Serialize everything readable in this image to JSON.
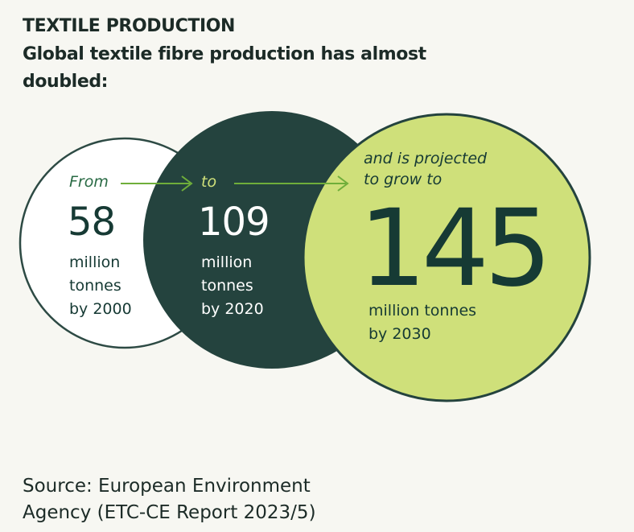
{
  "header": {
    "title": "TEXTILE PRODUCTION",
    "subtitle": "Global textile fibre production has almost doubled:"
  },
  "stages": [
    {
      "lead": "From",
      "value": "58",
      "unit_lines": [
        "million",
        "tonnes",
        "by 2000"
      ]
    },
    {
      "lead": "to",
      "value": "109",
      "unit_lines": [
        "million",
        "tonnes",
        "by 2020"
      ]
    },
    {
      "lead_lines": [
        "and is projected",
        "to grow to"
      ],
      "value": "145",
      "unit_lines": [
        "million tonnes",
        "by 2030"
      ]
    }
  ],
  "colors": {
    "circle_2000_stroke": "#2d4a44",
    "circle_2020_fill": "#24433e",
    "circle_2030_fill": "#cfe07a",
    "arrow": "#6fae3a",
    "text_dark": "#163a34",
    "text_light": "#ffffff"
  },
  "footer": {
    "source_line1": "Source: European Environment",
    "source_line2": "Agency (ETC-CE Report 2023/5)"
  }
}
